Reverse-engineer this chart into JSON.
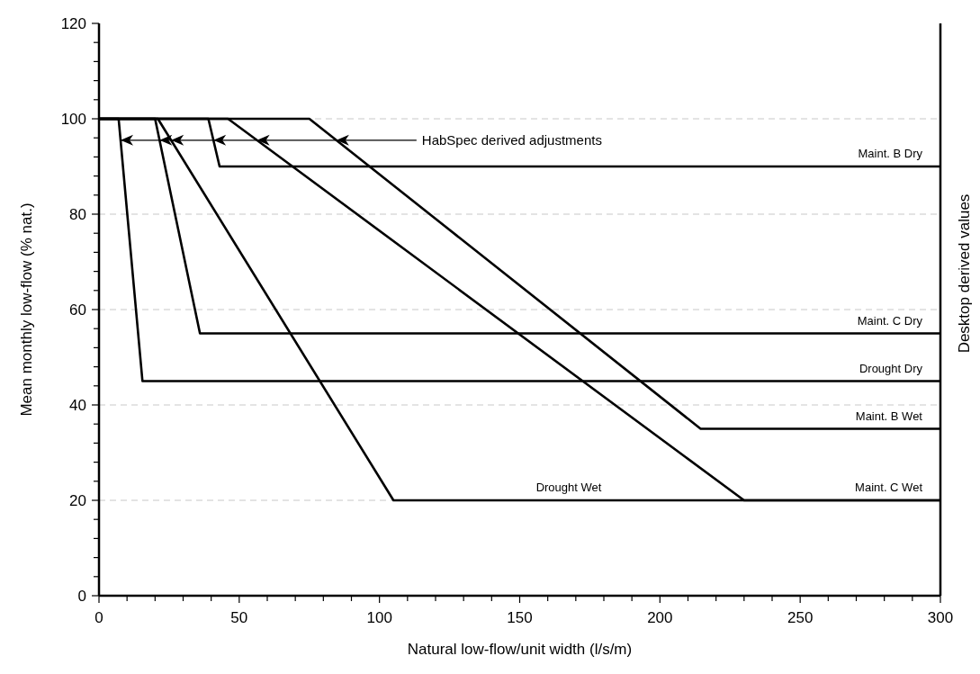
{
  "chart_data": {
    "type": "line",
    "xlabel": "Natural low-flow/unit width (l/s/m)",
    "ylabel": "Mean monthly low-flow (% nat.)",
    "y2label": "Desktop derived values",
    "xlim": [
      0,
      300
    ],
    "xticks": [
      0,
      {
        "value": 10,
        "label": null
      },
      {
        "value": 20,
        "label": null
      },
      {
        "value": 30,
        "label": null
      },
      {
        "value": 40,
        "label": null
      },
      50,
      {
        "value": 60,
        "label": null
      },
      {
        "value": 70,
        "label": null
      },
      {
        "value": 80,
        "label": null
      },
      {
        "value": 90,
        "label": null
      },
      100,
      {
        "value": 110,
        "label": null
      },
      {
        "value": 120,
        "label": null
      },
      {
        "value": 130,
        "label": null
      },
      {
        "value": 140,
        "label": null
      },
      150,
      {
        "value": 160,
        "label": null
      },
      {
        "value": 170,
        "label": null
      },
      {
        "value": 180,
        "label": null
      },
      {
        "value": 190,
        "label": null
      },
      200,
      {
        "value": 210,
        "label": null
      },
      {
        "value": 220,
        "label": null
      },
      {
        "value": 230,
        "label": null
      },
      {
        "value": 240,
        "label": null
      },
      250,
      {
        "value": 260,
        "label": null
      },
      {
        "value": 270,
        "label": null
      },
      {
        "value": 280,
        "label": null
      },
      {
        "value": 290,
        "label": null
      },
      300
    ],
    "ylim": [
      0,
      120
    ],
    "yticks": [
      0,
      {
        "value": 4,
        "label": null
      },
      {
        "value": 8,
        "label": null
      },
      {
        "value": 12,
        "label": null
      },
      {
        "value": 16,
        "label": null
      },
      20,
      {
        "value": 24,
        "label": null
      },
      {
        "value": 28,
        "label": null
      },
      {
        "value": 32,
        "label": null
      },
      {
        "value": 36,
        "label": null
      },
      40,
      {
        "value": 44,
        "label": null
      },
      {
        "value": 48,
        "label": null
      },
      {
        "value": 52,
        "label": null
      },
      {
        "value": 56,
        "label": null
      },
      60,
      {
        "value": 64,
        "label": null
      },
      {
        "value": 68,
        "label": null
      },
      {
        "value": 72,
        "label": null
      },
      {
        "value": 76,
        "label": null
      },
      80,
      {
        "value": 84,
        "label": null
      },
      {
        "value": 88,
        "label": null
      },
      {
        "value": 92,
        "label": null
      },
      {
        "value": 96,
        "label": null
      },
      100,
      {
        "value": 104,
        "label": null
      },
      {
        "value": 108,
        "label": null
      },
      {
        "value": 112,
        "label": null
      },
      {
        "value": 116,
        "label": null
      },
      120
    ],
    "grid": "y",
    "marker": "none",
    "line_style": "solid",
    "series": [
      {
        "name": "Maint.  B Dry",
        "color": "#000000",
        "x": [
          0,
          39,
          43,
          300
        ],
        "values": [
          100,
          100,
          90,
          90
        ]
      },
      {
        "name": "Maint.  C Dry",
        "color": "#000000",
        "x": [
          0,
          20,
          36,
          300
        ],
        "values": [
          100,
          100,
          55,
          55
        ]
      },
      {
        "name": "Drought Dry",
        "color": "#000000",
        "x": [
          0,
          7,
          15.5,
          300
        ],
        "values": [
          100,
          100,
          45,
          45
        ]
      },
      {
        "name": "Maint.  B Wet",
        "color": "#000000",
        "x": [
          0,
          75,
          214.5,
          300
        ],
        "values": [
          100,
          100,
          35,
          35
        ]
      },
      {
        "name": "Drought Wet",
        "color": "#000000",
        "x": [
          0,
          21,
          105,
          300
        ],
        "values": [
          100,
          100,
          20,
          20
        ]
      },
      {
        "name": "Maint.  C Wet",
        "color": "#000000",
        "x": [
          0,
          46,
          230,
          300
        ],
        "values": [
          100,
          100,
          20,
          20
        ]
      }
    ],
    "annotations": [
      {
        "text": "HabSpec derived adjustments",
        "x": 7.7,
        "y": 95.5
      }
    ]
  }
}
